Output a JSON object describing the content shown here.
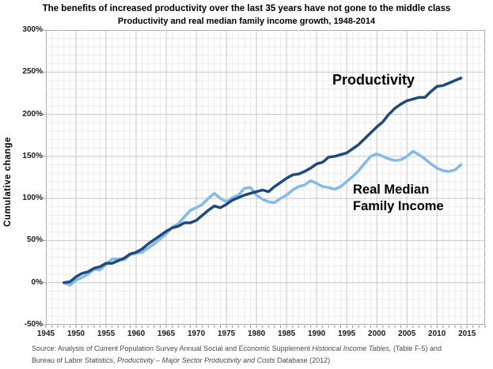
{
  "header": {
    "title": "The benefits of increased productivity over the last 35 years have not gone to the middle class",
    "subtitle": "Productivity and real median family income growth, 1948-2014"
  },
  "chart_data": {
    "type": "line",
    "title": "The benefits of increased productivity over the last 35 years have not gone to the middle class",
    "subtitle": "Productivity and real median family income growth, 1948-2014",
    "ylabel": "Cumulative change",
    "xlabel": "",
    "x_range": [
      1945,
      2018
    ],
    "y_range": [
      -50,
      300
    ],
    "x_ticks": [
      1945,
      1950,
      1955,
      1960,
      1965,
      1970,
      1975,
      1980,
      1985,
      1990,
      1995,
      2000,
      2005,
      2010,
      2015
    ],
    "y_ticks": [
      300,
      250,
      200,
      150,
      100,
      50,
      0,
      -50
    ],
    "y_tick_suffix": "%",
    "grid": {
      "minor_x_step_years": 1,
      "minor_y_step_pct": 10,
      "major_color": "#c6c6c6",
      "minor_color": "#ebebeb",
      "tick_color": "#9a9a9a"
    },
    "legend_position": "inline-annotations",
    "years": [
      1948,
      1949,
      1950,
      1951,
      1952,
      1953,
      1954,
      1955,
      1956,
      1957,
      1958,
      1959,
      1960,
      1961,
      1962,
      1963,
      1964,
      1965,
      1966,
      1967,
      1968,
      1969,
      1970,
      1971,
      1972,
      1973,
      1974,
      1975,
      1976,
      1977,
      1978,
      1979,
      1980,
      1981,
      1982,
      1983,
      1984,
      1985,
      1986,
      1987,
      1988,
      1989,
      1990,
      1991,
      1992,
      1993,
      1994,
      1995,
      1996,
      1997,
      1998,
      1999,
      2000,
      2001,
      2002,
      2003,
      2004,
      2005,
      2006,
      2007,
      2008,
      2009,
      2010,
      2011,
      2012,
      2013,
      2014
    ],
    "series": [
      {
        "name": "Productivity",
        "color": "#1F4A7D",
        "stroke_width": 3.5,
        "values": [
          0,
          1,
          7,
          11,
          13,
          17,
          19,
          23,
          23,
          26,
          29,
          34,
          36,
          40,
          46,
          51,
          56,
          61,
          65,
          67,
          71,
          71,
          74,
          80,
          86,
          91,
          89,
          93,
          98,
          101,
          104,
          106,
          108,
          110,
          108,
          114,
          119,
          124,
          128,
          129,
          132,
          136,
          141,
          143,
          149,
          150,
          152,
          154,
          159,
          164,
          171,
          178,
          185,
          191,
          200,
          207,
          212,
          216,
          218,
          220,
          220,
          227,
          233,
          234,
          237,
          240,
          243
        ]
      },
      {
        "name": "Real Median Family Income",
        "color": "#82BAE8",
        "stroke_width": 3.5,
        "values": [
          0,
          -3,
          3,
          6,
          10,
          16,
          15,
          22,
          28,
          28,
          27,
          33,
          35,
          36,
          41,
          46,
          52,
          58,
          66,
          70,
          78,
          86,
          89,
          93,
          100,
          106,
          100,
          96,
          101,
          104,
          112,
          113,
          104,
          99,
          96,
          95,
          100,
          104,
          110,
          114,
          116,
          121,
          118,
          114,
          113,
          111,
          114,
          120,
          126,
          133,
          142,
          150,
          153,
          150,
          147,
          145,
          146,
          150,
          156,
          152,
          147,
          141,
          136,
          133,
          132,
          134,
          140
        ]
      }
    ],
    "annotations": [
      {
        "id": "productivity-label",
        "text": "Productivity"
      },
      {
        "id": "income-label",
        "line1": "Real Median",
        "line2": "Family Income"
      }
    ]
  },
  "source": {
    "line1": [
      {
        "text": "Source:  Analysis of Current Population Survey Annual Social and Economic Supplement ",
        "italic": false
      },
      {
        "text": "Historical Income Tables,",
        "italic": true
      },
      {
        "text": " (Table F-5) and",
        "italic": false
      }
    ],
    "line2": [
      {
        "text": "Bureau of Labor Statistics, ",
        "italic": false
      },
      {
        "text": "Productivity – Major Sector Productivity and Costs",
        "italic": true
      },
      {
        "text": " Database (2012)",
        "italic": false
      }
    ]
  }
}
